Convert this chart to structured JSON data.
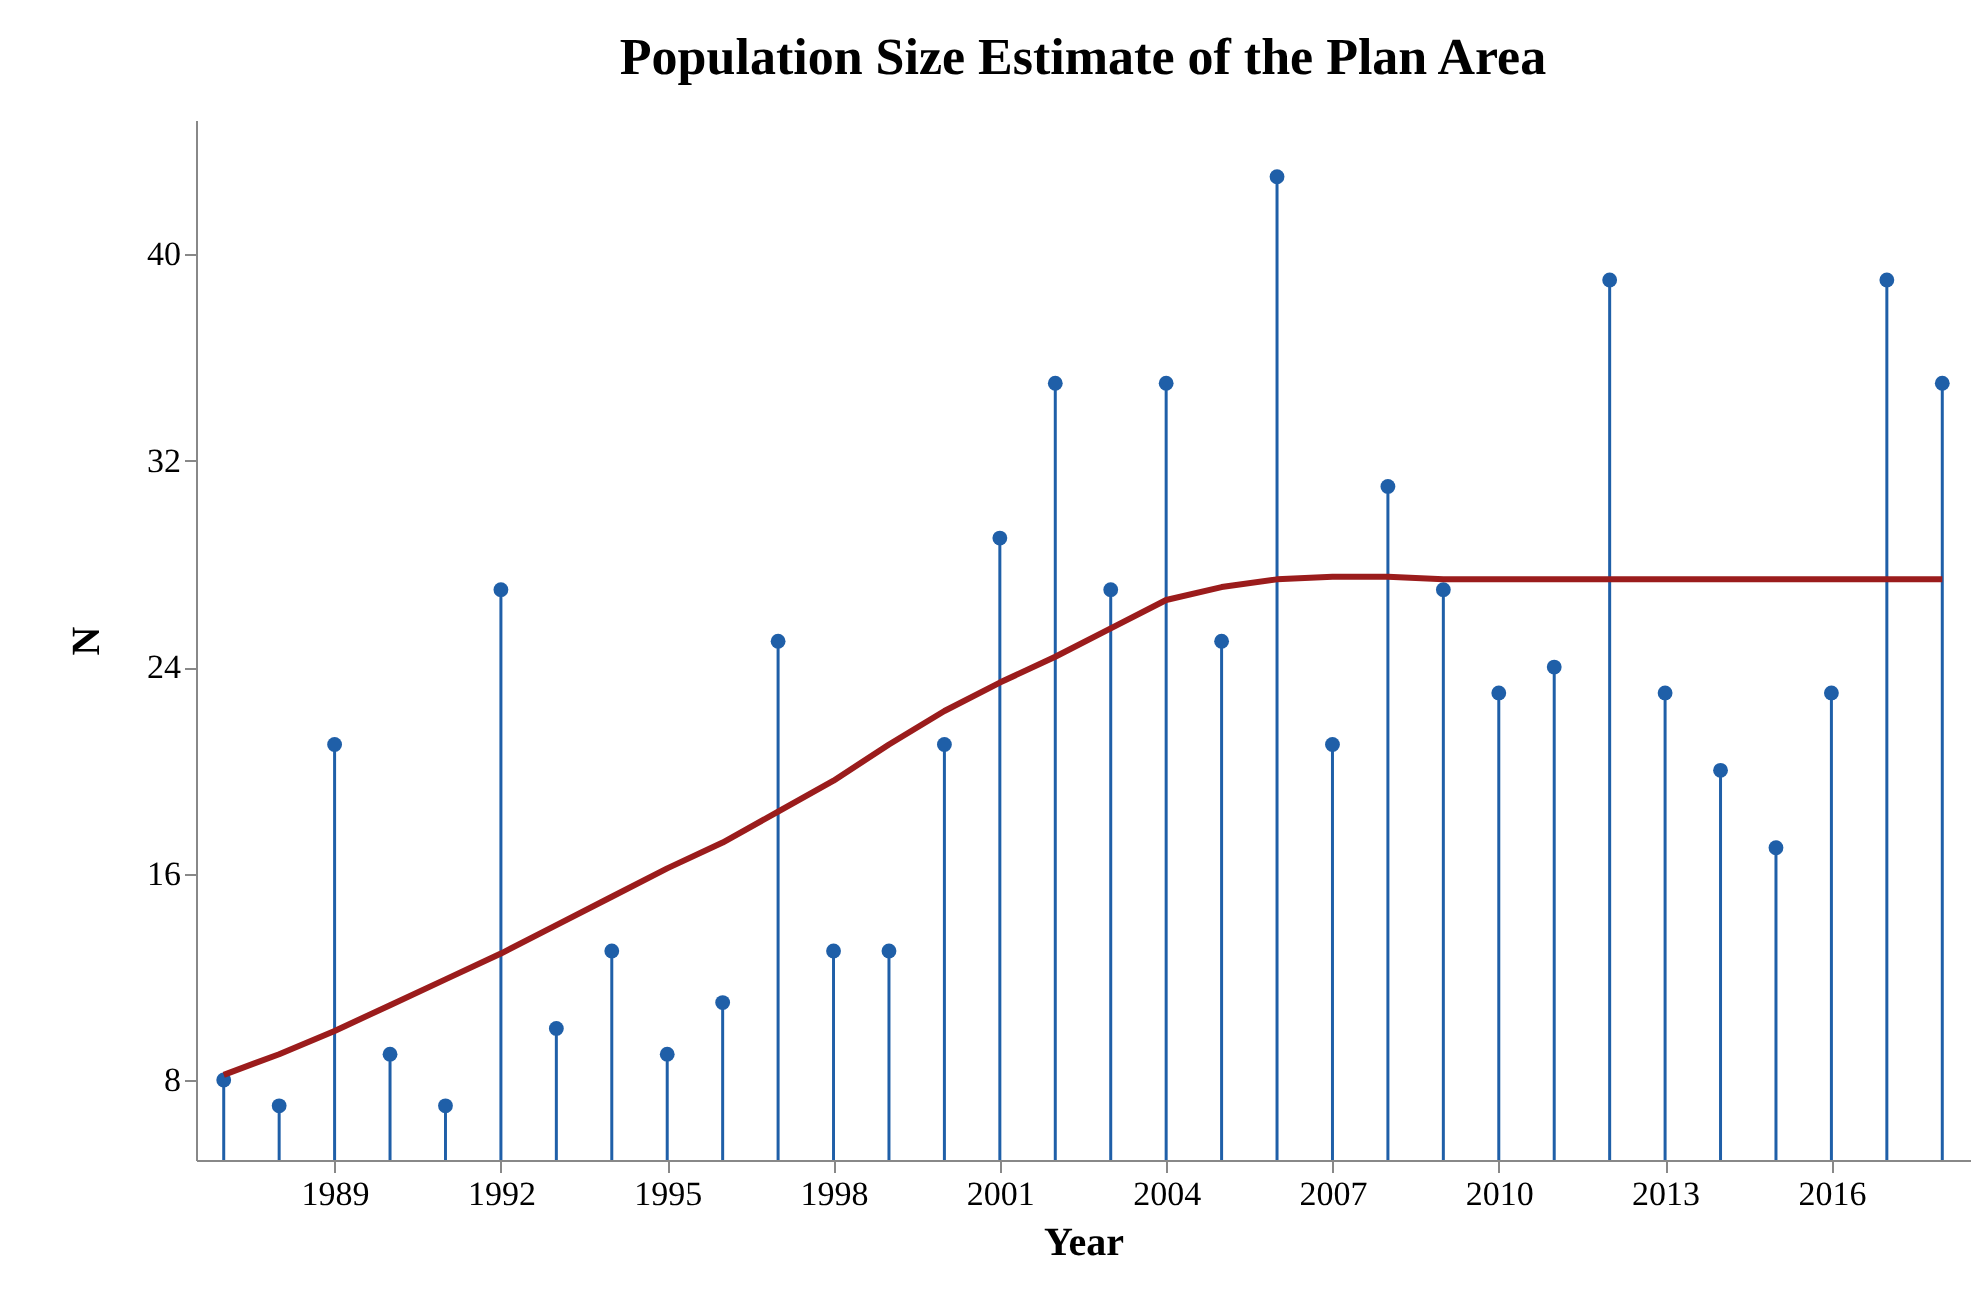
{
  "chart_data": {
    "type": "lollipop",
    "title": "Population Size Estimate of the Plan Area",
    "xlabel": "Year",
    "ylabel": "N",
    "x": [
      1987,
      1988,
      1989,
      1990,
      1991,
      1992,
      1993,
      1994,
      1995,
      1996,
      1997,
      1998,
      1999,
      2000,
      2001,
      2002,
      2003,
      2004,
      2005,
      2006,
      2007,
      2008,
      2009,
      2010,
      2011,
      2012,
      2013,
      2014,
      2015,
      2016,
      2017,
      2018
    ],
    "xlim": [
      1986.5,
      2018.5
    ],
    "xticks": [
      1989,
      1992,
      1995,
      1998,
      2001,
      2004,
      2007,
      2010,
      2013,
      2016
    ],
    "ylim": [
      4.9,
      45.2
    ],
    "yticks": [
      8,
      16,
      24,
      32,
      40
    ],
    "series": [
      {
        "color": "#1f5fa8",
        "marker": "circle",
        "values": [
          8,
          7,
          21,
          9,
          7,
          27,
          10,
          13,
          9,
          11,
          25,
          13,
          13,
          21,
          29,
          35,
          27,
          35,
          25,
          43,
          21,
          31,
          27,
          23,
          24,
          39,
          23,
          20,
          17,
          23,
          39,
          35
        ]
      },
      {
        "type": "line",
        "color": "#9b1c1c",
        "values": [
          8.2,
          9,
          9.9,
          10.9,
          11.9,
          12.9,
          14,
          15.1,
          16.2,
          17.2,
          18.4,
          19.6,
          21,
          22.3,
          23.4,
          24.4,
          25.5,
          26.6,
          27.1,
          27.4,
          27.5,
          27.5,
          27.4,
          27.4,
          27.4,
          27.4,
          27.4,
          27.4,
          27.4,
          27.4,
          27.4,
          27.4
        ]
      }
    ]
  }
}
